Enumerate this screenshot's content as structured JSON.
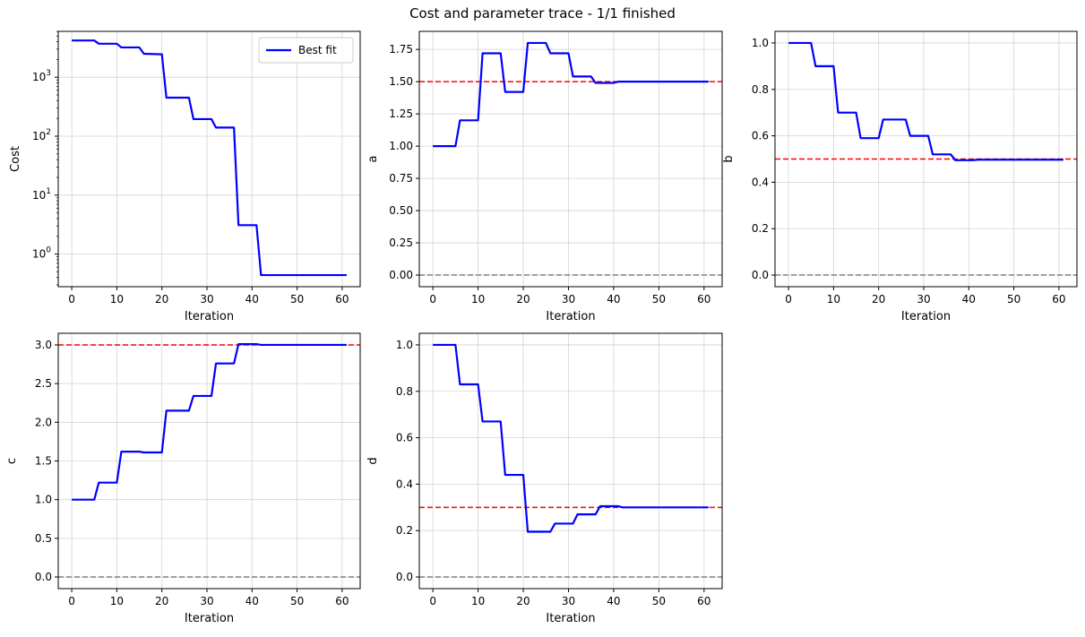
{
  "figure": {
    "suptitle": "Cost and parameter trace - 1/1 finished",
    "colors": {
      "trace": "#0000ff",
      "target": "#ff0000",
      "zero": "#808080",
      "grid": "#d3d3d3",
      "axes": "#000000"
    }
  },
  "chart_data": [
    {
      "id": "cost",
      "type": "line",
      "xlabel": "Iteration",
      "ylabel": "Cost",
      "yscale": "log",
      "xlim": [
        -3,
        64
      ],
      "ylim": [
        0.28,
        6000
      ],
      "xticks": [
        0,
        10,
        20,
        30,
        40,
        50,
        60
      ],
      "yticks": [
        1,
        10,
        100,
        1000
      ],
      "ytick_labels": [
        [
          "10",
          "0"
        ],
        [
          "10",
          "1"
        ],
        [
          "10",
          "2"
        ],
        [
          "10",
          "3"
        ]
      ],
      "grid": true,
      "legend": {
        "placement": "top-right",
        "entries": [
          "Best fit"
        ]
      },
      "series": [
        {
          "name": "Best fit",
          "color": "#0000ff",
          "points": [
            [
              0,
              4200
            ],
            [
              5,
              4200
            ],
            [
              6,
              3700
            ],
            [
              10,
              3700
            ],
            [
              11,
              3200
            ],
            [
              15,
              3200
            ],
            [
              16,
              2500
            ],
            [
              20,
              2450
            ],
            [
              21,
              450
            ],
            [
              26,
              450
            ],
            [
              27,
              195
            ],
            [
              31,
              195
            ],
            [
              32,
              140
            ],
            [
              36,
              140
            ],
            [
              37,
              3.1
            ],
            [
              41,
              3.1
            ],
            [
              42,
              0.44
            ],
            [
              61,
              0.44
            ]
          ]
        }
      ],
      "hlines": []
    },
    {
      "id": "a",
      "type": "line",
      "xlabel": "Iteration",
      "ylabel": "a",
      "yscale": "linear",
      "xlim": [
        -3,
        64
      ],
      "ylim": [
        -0.09,
        1.89
      ],
      "xticks": [
        0,
        10,
        20,
        30,
        40,
        50,
        60
      ],
      "yticks": [
        0.0,
        0.25,
        0.5,
        0.75,
        1.0,
        1.25,
        1.5,
        1.75
      ],
      "ytick_labels": [
        "0.00",
        "0.25",
        "0.50",
        "0.75",
        "1.00",
        "1.25",
        "1.50",
        "1.75"
      ],
      "grid": true,
      "series": [
        {
          "color": "#0000ff",
          "points": [
            [
              0,
              1.0
            ],
            [
              5,
              1.0
            ],
            [
              6,
              1.2
            ],
            [
              10,
              1.2
            ],
            [
              11,
              1.72
            ],
            [
              15,
              1.72
            ],
            [
              16,
              1.42
            ],
            [
              20,
              1.42
            ],
            [
              21,
              1.8
            ],
            [
              25,
              1.8
            ],
            [
              26,
              1.72
            ],
            [
              30,
              1.72
            ],
            [
              31,
              1.54
            ],
            [
              35,
              1.54
            ],
            [
              36,
              1.49
            ],
            [
              40,
              1.49
            ],
            [
              41,
              1.5
            ],
            [
              61,
              1.5
            ]
          ]
        }
      ],
      "hlines": [
        {
          "y": 1.5,
          "color": "#ff0000"
        },
        {
          "y": 0.0,
          "color": "#808080"
        }
      ]
    },
    {
      "id": "b",
      "type": "line",
      "xlabel": "Iteration",
      "ylabel": "b",
      "yscale": "linear",
      "xlim": [
        -3,
        64
      ],
      "ylim": [
        -0.05,
        1.05
      ],
      "xticks": [
        0,
        10,
        20,
        30,
        40,
        50,
        60
      ],
      "yticks": [
        0.0,
        0.2,
        0.4,
        0.6,
        0.8,
        1.0
      ],
      "ytick_labels": [
        "0.0",
        "0.2",
        "0.4",
        "0.6",
        "0.8",
        "1.0"
      ],
      "grid": true,
      "series": [
        {
          "color": "#0000ff",
          "points": [
            [
              0,
              1.0
            ],
            [
              5,
              1.0
            ],
            [
              6,
              0.9
            ],
            [
              10,
              0.9
            ],
            [
              11,
              0.7
            ],
            [
              15,
              0.7
            ],
            [
              16,
              0.59
            ],
            [
              20,
              0.59
            ],
            [
              21,
              0.67
            ],
            [
              26,
              0.67
            ],
            [
              27,
              0.6
            ],
            [
              31,
              0.6
            ],
            [
              32,
              0.52
            ],
            [
              36,
              0.52
            ],
            [
              37,
              0.495
            ],
            [
              41,
              0.495
            ],
            [
              42,
              0.497
            ],
            [
              61,
              0.497
            ]
          ]
        }
      ],
      "hlines": [
        {
          "y": 0.5,
          "color": "#ff0000"
        },
        {
          "y": 0.0,
          "color": "#808080"
        }
      ]
    },
    {
      "id": "c",
      "type": "line",
      "xlabel": "Iteration",
      "ylabel": "c",
      "yscale": "linear",
      "xlim": [
        -3,
        64
      ],
      "ylim": [
        -0.15,
        3.15
      ],
      "xticks": [
        0,
        10,
        20,
        30,
        40,
        50,
        60
      ],
      "yticks": [
        0.0,
        0.5,
        1.0,
        1.5,
        2.0,
        2.5,
        3.0
      ],
      "ytick_labels": [
        "0.0",
        "0.5",
        "1.0",
        "1.5",
        "2.0",
        "2.5",
        "3.0"
      ],
      "grid": true,
      "series": [
        {
          "color": "#0000ff",
          "points": [
            [
              0,
              1.0
            ],
            [
              5,
              1.0
            ],
            [
              6,
              1.22
            ],
            [
              10,
              1.22
            ],
            [
              11,
              1.62
            ],
            [
              15,
              1.62
            ],
            [
              16,
              1.61
            ],
            [
              20,
              1.61
            ],
            [
              21,
              2.15
            ],
            [
              26,
              2.15
            ],
            [
              27,
              2.34
            ],
            [
              31,
              2.34
            ],
            [
              32,
              2.76
            ],
            [
              36,
              2.76
            ],
            [
              37,
              3.01
            ],
            [
              41,
              3.01
            ],
            [
              42,
              3.0
            ],
            [
              61,
              3.0
            ]
          ]
        }
      ],
      "hlines": [
        {
          "y": 3.0,
          "color": "#ff0000"
        },
        {
          "y": 0.0,
          "color": "#808080"
        }
      ]
    },
    {
      "id": "d",
      "type": "line",
      "xlabel": "Iteration",
      "ylabel": "d",
      "yscale": "linear",
      "xlim": [
        -3,
        64
      ],
      "ylim": [
        -0.05,
        1.05
      ],
      "xticks": [
        0,
        10,
        20,
        30,
        40,
        50,
        60
      ],
      "yticks": [
        0.0,
        0.2,
        0.4,
        0.6,
        0.8,
        1.0
      ],
      "ytick_labels": [
        "0.0",
        "0.2",
        "0.4",
        "0.6",
        "0.8",
        "1.0"
      ],
      "grid": true,
      "series": [
        {
          "color": "#0000ff",
          "points": [
            [
              0,
              1.0
            ],
            [
              5,
              1.0
            ],
            [
              6,
              0.83
            ],
            [
              10,
              0.83
            ],
            [
              11,
              0.67
            ],
            [
              15,
              0.67
            ],
            [
              16,
              0.44
            ],
            [
              20,
              0.44
            ],
            [
              21,
              0.195
            ],
            [
              26,
              0.195
            ],
            [
              27,
              0.23
            ],
            [
              31,
              0.23
            ],
            [
              32,
              0.27
            ],
            [
              36,
              0.27
            ],
            [
              37,
              0.305
            ],
            [
              41,
              0.305
            ],
            [
              42,
              0.3
            ],
            [
              61,
              0.3
            ]
          ]
        }
      ],
      "hlines": [
        {
          "y": 0.3,
          "color": "#ff0000"
        },
        {
          "y": 0.0,
          "color": "#808080"
        }
      ]
    }
  ]
}
